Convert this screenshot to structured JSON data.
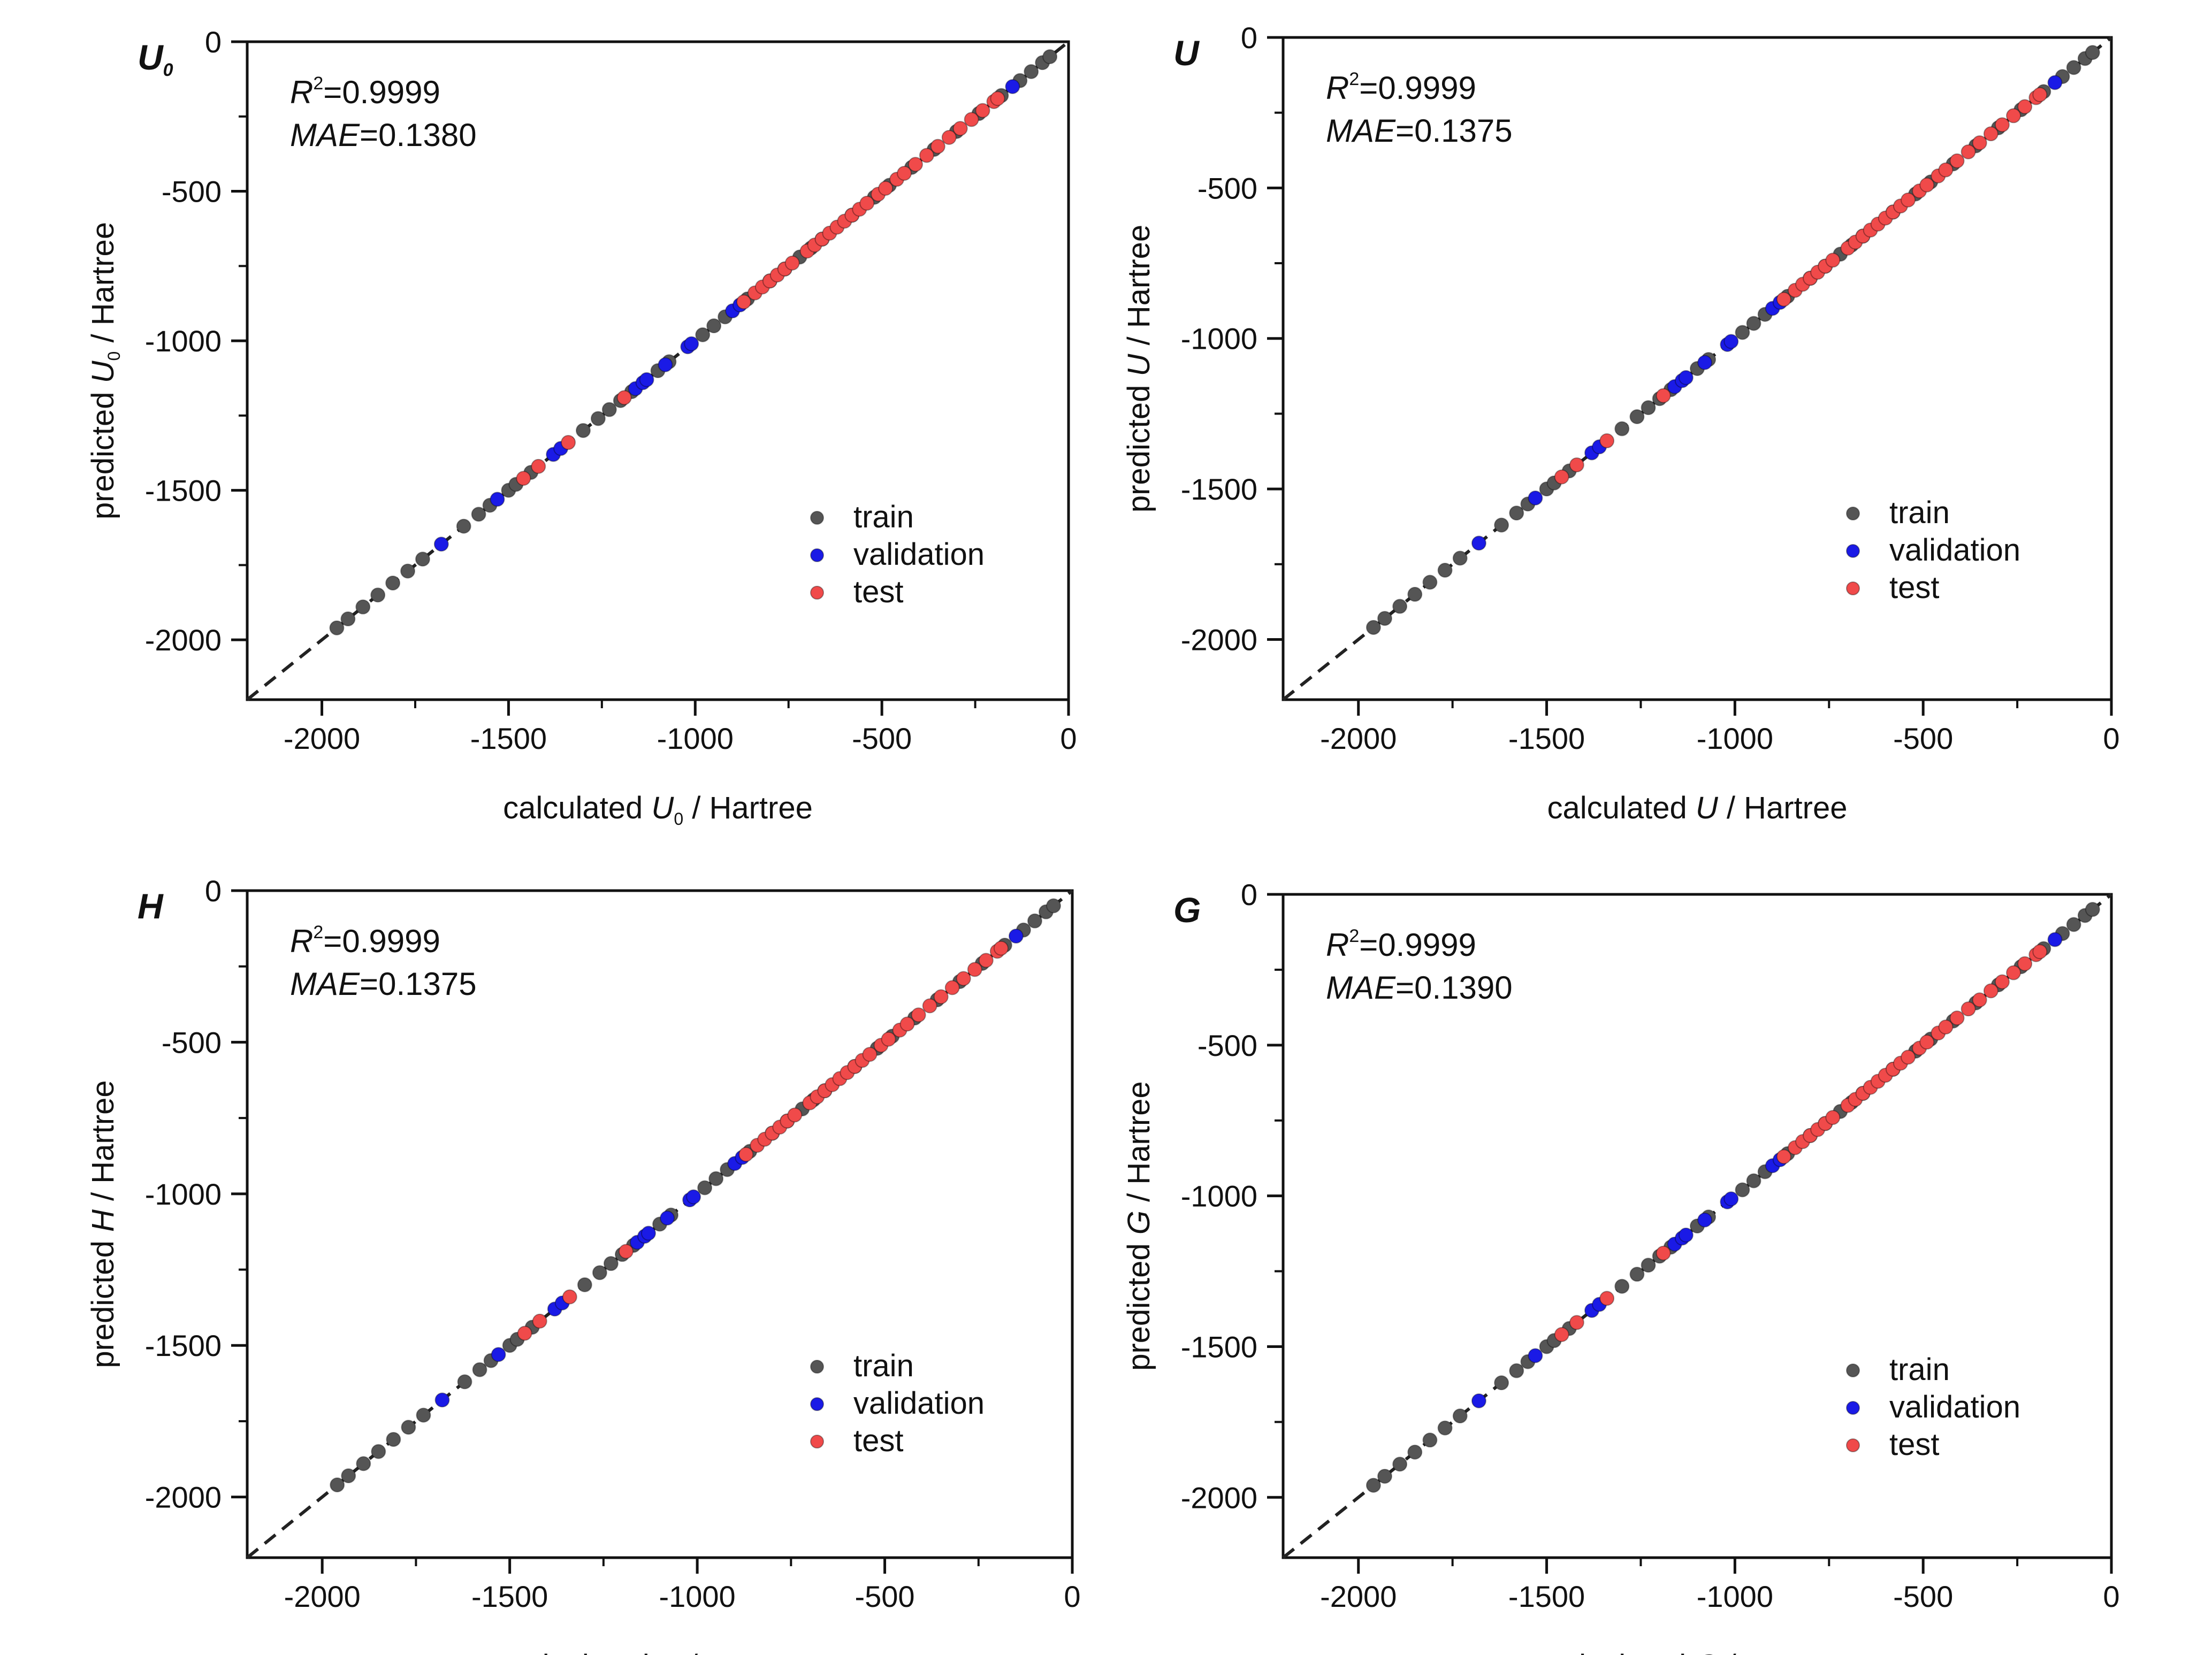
{
  "legend": {
    "train": "train",
    "validation": "validation",
    "test": "test"
  },
  "colors": {
    "train": "#555555",
    "validation": "#1a1ae6",
    "test": "#f04a4a",
    "axis": "#111111",
    "parity_line": "#222222"
  },
  "axis_unit": "Hartree",
  "x_prefix": "calculated",
  "y_prefix": "predicted",
  "stat_labels": {
    "r2": "R",
    "r2_sup": "2",
    "mae": "MAE"
  },
  "chart_data": [
    {
      "type": "scatter",
      "panel_label": "U",
      "panel_label_sub": "0",
      "xlabel": "calculated U0 / Hartree",
      "ylabel": "predicted U0 / Hartree",
      "xlim": [
        -2200,
        0
      ],
      "ylim": [
        -2200,
        0
      ],
      "xticks": [
        -2000,
        -1500,
        -1000,
        -500,
        0
      ],
      "yticks": [
        0,
        -500,
        -1000,
        -1500,
        -2000
      ],
      "r2": "0.9999",
      "mae": "0.1380",
      "series": [
        {
          "name": "train",
          "color": "#555555",
          "x": [
            -1960,
            -1930,
            -1890,
            -1850,
            -1810,
            -1770,
            -1730,
            -1620,
            -1580,
            -1550,
            -1500,
            -1480,
            -1440,
            -1300,
            -1260,
            -1230,
            -1200,
            -1170,
            -1100,
            -1070,
            -980,
            -950,
            -920,
            -860,
            -800,
            -760,
            -720,
            -690,
            -660,
            -580,
            -520,
            -480,
            -420,
            -360,
            -300,
            -240,
            -180,
            -130,
            -100,
            -70,
            -50
          ],
          "y": [
            -1960,
            -1930,
            -1890,
            -1850,
            -1810,
            -1770,
            -1730,
            -1620,
            -1580,
            -1550,
            -1500,
            -1480,
            -1440,
            -1300,
            -1260,
            -1230,
            -1200,
            -1170,
            -1100,
            -1070,
            -980,
            -950,
            -920,
            -860,
            -800,
            -760,
            -720,
            -690,
            -660,
            -580,
            -520,
            -480,
            -420,
            -360,
            -300,
            -240,
            -180,
            -130,
            -100,
            -70,
            -50
          ]
        },
        {
          "name": "validation",
          "color": "#1a1ae6",
          "x": [
            -1680,
            -1530,
            -1380,
            -1360,
            -1160,
            -1140,
            -1130,
            -1080,
            -1020,
            -1010,
            -900,
            -880,
            -150
          ],
          "y": [
            -1680,
            -1530,
            -1380,
            -1360,
            -1160,
            -1140,
            -1130,
            -1080,
            -1020,
            -1010,
            -900,
            -880,
            -150
          ]
        },
        {
          "name": "test",
          "color": "#f04a4a",
          "x": [
            -1460,
            -1420,
            -1340,
            -1190,
            -870,
            -840,
            -820,
            -800,
            -780,
            -760,
            -740,
            -700,
            -680,
            -660,
            -640,
            -620,
            -600,
            -580,
            -560,
            -540,
            -510,
            -490,
            -460,
            -440,
            -410,
            -380,
            -350,
            -320,
            -290,
            -260,
            -230,
            -200,
            -190
          ],
          "y": [
            -1460,
            -1420,
            -1340,
            -1190,
            -870,
            -840,
            -820,
            -800,
            -780,
            -760,
            -740,
            -700,
            -680,
            -660,
            -640,
            -620,
            -600,
            -580,
            -560,
            -540,
            -510,
            -490,
            -460,
            -440,
            -410,
            -380,
            -350,
            -320,
            -290,
            -260,
            -230,
            -200,
            -190
          ]
        }
      ]
    },
    {
      "type": "scatter",
      "panel_label": "U",
      "panel_label_sub": "",
      "xlabel": "calculated U / Hartree",
      "ylabel": "predicted U / Hartree",
      "xlim": [
        -2200,
        0
      ],
      "ylim": [
        -2200,
        0
      ],
      "xticks": [
        -2000,
        -1500,
        -1000,
        -500,
        0
      ],
      "yticks": [
        0,
        -500,
        -1000,
        -1500,
        -2000
      ],
      "r2": "0.9999",
      "mae": "0.1375",
      "series": [
        {
          "name": "train",
          "color": "#555555",
          "x": [
            -1960,
            -1930,
            -1890,
            -1850,
            -1810,
            -1770,
            -1730,
            -1620,
            -1580,
            -1550,
            -1500,
            -1480,
            -1440,
            -1300,
            -1260,
            -1230,
            -1200,
            -1170,
            -1100,
            -1070,
            -980,
            -950,
            -920,
            -860,
            -800,
            -760,
            -720,
            -690,
            -660,
            -580,
            -520,
            -480,
            -420,
            -360,
            -300,
            -240,
            -180,
            -130,
            -100,
            -70,
            -50
          ],
          "y": [
            -1960,
            -1930,
            -1890,
            -1850,
            -1810,
            -1770,
            -1730,
            -1620,
            -1580,
            -1550,
            -1500,
            -1480,
            -1440,
            -1300,
            -1260,
            -1230,
            -1200,
            -1170,
            -1100,
            -1070,
            -980,
            -950,
            -920,
            -860,
            -800,
            -760,
            -720,
            -690,
            -660,
            -580,
            -520,
            -480,
            -420,
            -360,
            -300,
            -240,
            -180,
            -130,
            -100,
            -70,
            -50
          ]
        },
        {
          "name": "validation",
          "color": "#1a1ae6",
          "x": [
            -1680,
            -1530,
            -1380,
            -1360,
            -1160,
            -1140,
            -1130,
            -1080,
            -1020,
            -1010,
            -900,
            -880,
            -150
          ],
          "y": [
            -1680,
            -1530,
            -1380,
            -1360,
            -1160,
            -1140,
            -1130,
            -1080,
            -1020,
            -1010,
            -900,
            -880,
            -150
          ]
        },
        {
          "name": "test",
          "color": "#f04a4a",
          "x": [
            -1460,
            -1420,
            -1340,
            -1190,
            -870,
            -840,
            -820,
            -800,
            -780,
            -760,
            -740,
            -700,
            -680,
            -660,
            -640,
            -620,
            -600,
            -580,
            -560,
            -540,
            -510,
            -490,
            -460,
            -440,
            -410,
            -380,
            -350,
            -320,
            -290,
            -260,
            -230,
            -200,
            -190
          ],
          "y": [
            -1460,
            -1420,
            -1340,
            -1190,
            -870,
            -840,
            -820,
            -800,
            -780,
            -760,
            -740,
            -700,
            -680,
            -660,
            -640,
            -620,
            -600,
            -580,
            -560,
            -540,
            -510,
            -490,
            -460,
            -440,
            -410,
            -380,
            -350,
            -320,
            -290,
            -260,
            -230,
            -200,
            -190
          ]
        }
      ]
    },
    {
      "type": "scatter",
      "panel_label": "H",
      "panel_label_sub": "",
      "xlabel": "calculated H / Hartree",
      "ylabel": "predicted H / Hartree",
      "xlim": [
        -2200,
        0
      ],
      "ylim": [
        -2200,
        0
      ],
      "xticks": [
        -2000,
        -1500,
        -1000,
        -500,
        0
      ],
      "yticks": [
        0,
        -500,
        -1000,
        -1500,
        -2000
      ],
      "r2": "0.9999",
      "mae": "0.1375",
      "series": [
        {
          "name": "train",
          "color": "#555555",
          "x": [
            -1960,
            -1930,
            -1890,
            -1850,
            -1810,
            -1770,
            -1730,
            -1620,
            -1580,
            -1550,
            -1500,
            -1480,
            -1440,
            -1300,
            -1260,
            -1230,
            -1200,
            -1170,
            -1100,
            -1070,
            -980,
            -950,
            -920,
            -860,
            -800,
            -760,
            -720,
            -690,
            -660,
            -580,
            -520,
            -480,
            -420,
            -360,
            -300,
            -240,
            -180,
            -130,
            -100,
            -70,
            -50
          ],
          "y": [
            -1960,
            -1930,
            -1890,
            -1850,
            -1810,
            -1770,
            -1730,
            -1620,
            -1580,
            -1550,
            -1500,
            -1480,
            -1440,
            -1300,
            -1260,
            -1230,
            -1200,
            -1170,
            -1100,
            -1070,
            -980,
            -950,
            -920,
            -860,
            -800,
            -760,
            -720,
            -690,
            -660,
            -580,
            -520,
            -480,
            -420,
            -360,
            -300,
            -240,
            -180,
            -130,
            -100,
            -70,
            -50
          ]
        },
        {
          "name": "validation",
          "color": "#1a1ae6",
          "x": [
            -1680,
            -1530,
            -1380,
            -1360,
            -1160,
            -1140,
            -1130,
            -1080,
            -1020,
            -1010,
            -900,
            -880,
            -150
          ],
          "y": [
            -1680,
            -1530,
            -1380,
            -1360,
            -1160,
            -1140,
            -1130,
            -1080,
            -1020,
            -1010,
            -900,
            -880,
            -150
          ]
        },
        {
          "name": "test",
          "color": "#f04a4a",
          "x": [
            -1460,
            -1420,
            -1340,
            -1190,
            -870,
            -840,
            -820,
            -800,
            -780,
            -760,
            -740,
            -700,
            -680,
            -660,
            -640,
            -620,
            -600,
            -580,
            -560,
            -540,
            -510,
            -490,
            -460,
            -440,
            -410,
            -380,
            -350,
            -320,
            -290,
            -260,
            -230,
            -200,
            -190
          ],
          "y": [
            -1460,
            -1420,
            -1340,
            -1190,
            -870,
            -840,
            -820,
            -800,
            -780,
            -760,
            -740,
            -700,
            -680,
            -660,
            -640,
            -620,
            -600,
            -580,
            -560,
            -540,
            -510,
            -490,
            -460,
            -440,
            -410,
            -380,
            -350,
            -320,
            -290,
            -260,
            -230,
            -200,
            -190
          ]
        }
      ]
    },
    {
      "type": "scatter",
      "panel_label": "G",
      "panel_label_sub": "",
      "xlabel": "calculated G / Hartree",
      "ylabel": "predicted G / Hartree",
      "xlim": [
        -2200,
        0
      ],
      "ylim": [
        -2200,
        0
      ],
      "xticks": [
        -2000,
        -1500,
        -1000,
        -500,
        0
      ],
      "yticks": [
        0,
        -500,
        -1000,
        -1500,
        -2000
      ],
      "r2": "0.9999",
      "mae": "0.1390",
      "series": [
        {
          "name": "train",
          "color": "#555555",
          "x": [
            -1960,
            -1930,
            -1890,
            -1850,
            -1810,
            -1770,
            -1730,
            -1620,
            -1580,
            -1550,
            -1500,
            -1480,
            -1440,
            -1300,
            -1260,
            -1230,
            -1200,
            -1170,
            -1100,
            -1070,
            -980,
            -950,
            -920,
            -860,
            -800,
            -760,
            -720,
            -690,
            -660,
            -580,
            -520,
            -480,
            -420,
            -360,
            -300,
            -240,
            -180,
            -130,
            -100,
            -70,
            -50
          ],
          "y": [
            -1960,
            -1930,
            -1890,
            -1850,
            -1810,
            -1770,
            -1730,
            -1620,
            -1580,
            -1550,
            -1500,
            -1480,
            -1440,
            -1300,
            -1260,
            -1230,
            -1200,
            -1170,
            -1100,
            -1070,
            -980,
            -950,
            -920,
            -860,
            -800,
            -760,
            -720,
            -690,
            -660,
            -580,
            -520,
            -480,
            -420,
            -360,
            -300,
            -240,
            -180,
            -130,
            -100,
            -70,
            -50
          ]
        },
        {
          "name": "validation",
          "color": "#1a1ae6",
          "x": [
            -1680,
            -1530,
            -1380,
            -1360,
            -1160,
            -1140,
            -1130,
            -1080,
            -1020,
            -1010,
            -900,
            -880,
            -150
          ],
          "y": [
            -1680,
            -1530,
            -1380,
            -1360,
            -1160,
            -1140,
            -1130,
            -1080,
            -1020,
            -1010,
            -900,
            -880,
            -150
          ]
        },
        {
          "name": "test",
          "color": "#f04a4a",
          "x": [
            -1460,
            -1420,
            -1340,
            -1190,
            -870,
            -840,
            -820,
            -800,
            -780,
            -760,
            -740,
            -700,
            -680,
            -660,
            -640,
            -620,
            -600,
            -580,
            -560,
            -540,
            -510,
            -490,
            -460,
            -440,
            -410,
            -380,
            -350,
            -320,
            -290,
            -260,
            -230,
            -200,
            -190
          ],
          "y": [
            -1460,
            -1420,
            -1340,
            -1190,
            -870,
            -840,
            -820,
            -800,
            -780,
            -760,
            -740,
            -700,
            -680,
            -660,
            -640,
            -620,
            -600,
            -580,
            -560,
            -540,
            -510,
            -490,
            -460,
            -440,
            -410,
            -380,
            -350,
            -320,
            -290,
            -260,
            -230,
            -200,
            -190
          ]
        }
      ]
    }
  ]
}
